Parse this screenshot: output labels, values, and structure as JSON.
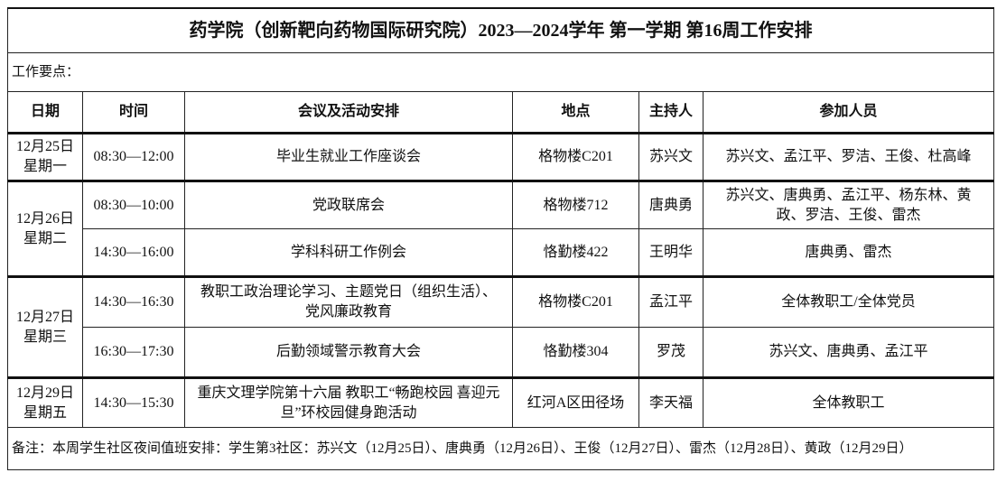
{
  "title": "药学院（创新靶向药物国际研究院）2023—2024学年 第一学期 第16周工作安排",
  "key_points_label": "工作要点：",
  "headers": {
    "date": "日期",
    "time": "时间",
    "event": "会议及活动安排",
    "location": "地点",
    "host": "主持人",
    "attendees": "参加人员"
  },
  "days": [
    {
      "date": "12月25日",
      "weekday": "星期一"
    },
    {
      "date": "12月26日",
      "weekday": "星期二"
    },
    {
      "date": "12月27日",
      "weekday": "星期三"
    },
    {
      "date": "12月29日",
      "weekday": "星期五"
    }
  ],
  "rows": [
    {
      "time": "08:30—12:00",
      "event": "毕业生就业工作座谈会",
      "location": "格物楼C201",
      "host": "苏兴文",
      "attendees": "苏兴文、孟江平、罗洁、王俊、杜高峰"
    },
    {
      "time": "08:30—10:00",
      "event": "党政联席会",
      "location": "格物楼712",
      "host": "唐典勇",
      "attendees": "苏兴文、唐典勇、孟江平、杨东林、黄政、罗洁、王俊、雷杰"
    },
    {
      "time": "14:30—16:00",
      "event": "学科科研工作例会",
      "location": "恪勤楼422",
      "host": "王明华",
      "attendees": "唐典勇、雷杰"
    },
    {
      "time": "14:30—16:30",
      "event": "教职工政治理论学习、主题党日（组织生活）、党风廉政教育",
      "location": "格物楼C201",
      "host": "孟江平",
      "attendees": "全体教职工/全体党员"
    },
    {
      "time": "16:30—17:30",
      "event": "后勤领域警示教育大会",
      "location": "恪勤楼304",
      "host": "罗茂",
      "attendees": "苏兴文、唐典勇、孟江平"
    },
    {
      "time": "14:30—15:30",
      "event": "重庆文理学院第十六届 教职工“畅跑校园 喜迎元旦”环校园健身跑活动",
      "location": "红河A区田径场",
      "host": "李天福",
      "attendees": "全体教职工"
    }
  ],
  "note": "备注：本周学生社区夜间值班安排：学生第3社区：苏兴文（12月25日）、唐典勇（12月26日）、王俊（12月27日）、雷杰（12月28日）、黄政（12月29日）"
}
